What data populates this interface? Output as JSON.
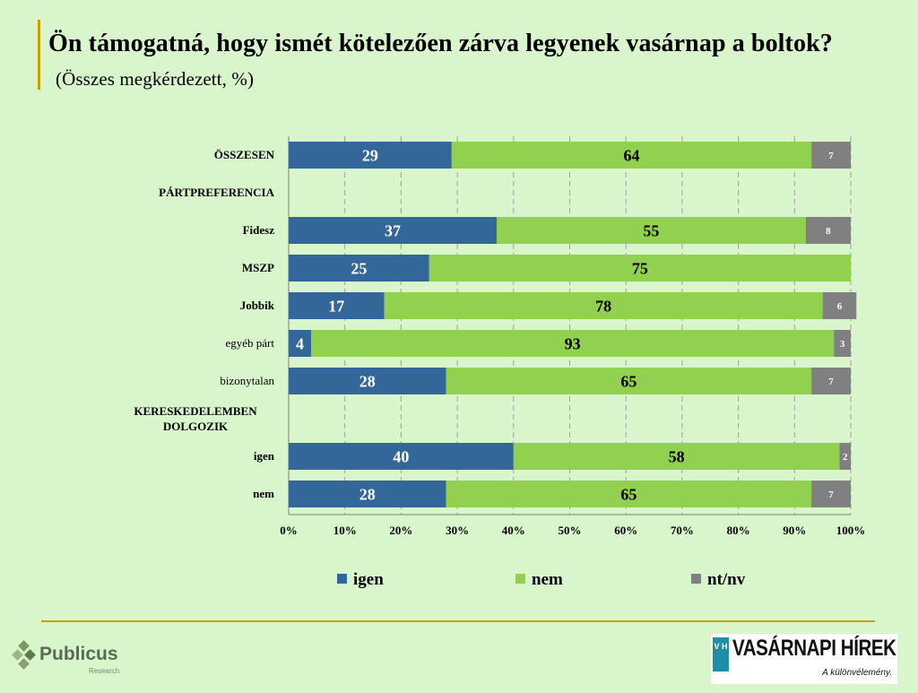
{
  "title": "Ön támogatná, hogy ismét kötelezően zárva legyenek vasárnap a boltok?",
  "subtitle": "(Összes megkérdezett, %)",
  "chart_data": {
    "type": "bar",
    "orientation": "horizontal",
    "stacked": true,
    "percent_stacked": true,
    "categories": [
      "ÖSSZESEN",
      "PÁRTPREFERENCIA",
      "Fidesz",
      "MSZP",
      "Jobbik",
      "egyéb párt",
      "bizonytalan",
      "KERESKEDELEMBEN DOLGOZIK",
      "igen",
      "nem"
    ],
    "category_bold": [
      true,
      true,
      true,
      true,
      true,
      false,
      false,
      true,
      true,
      true
    ],
    "series": [
      {
        "name": "igen",
        "color": "#336699",
        "values": [
          29,
          null,
          37,
          25,
          17,
          4,
          28,
          null,
          40,
          28
        ]
      },
      {
        "name": "nem",
        "color": "#92d050",
        "values": [
          64,
          null,
          55,
          75,
          78,
          93,
          65,
          null,
          58,
          65
        ]
      },
      {
        "name": "nt/nv",
        "color": "#808080",
        "values": [
          7,
          null,
          8,
          null,
          6,
          3,
          7,
          null,
          2,
          7
        ]
      }
    ],
    "xlim": [
      0,
      100
    ],
    "xticks": [
      "0%",
      "10%",
      "20%",
      "30%",
      "40%",
      "50%",
      "60%",
      "70%",
      "80%",
      "90%",
      "100%"
    ],
    "grid": "vertical dashed",
    "legend": "bottom"
  },
  "logos": {
    "publicus_name": "Publicus",
    "publicus_sub": "Research",
    "vh_mark": "V H",
    "vh_name": "VASÁRNAPI HÍREK",
    "vh_tagline": "A különvélemény."
  },
  "colors": {
    "background": "#d9f5cc",
    "accent_rule": "#c8a000"
  }
}
